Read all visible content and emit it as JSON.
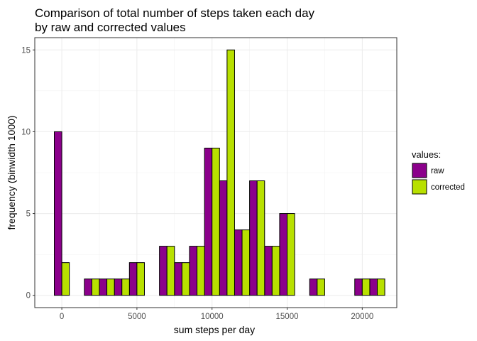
{
  "chart_data": {
    "type": "bar",
    "title_lines": [
      "Comparison of total number of steps taken each day",
      "by raw and corrected values"
    ],
    "xlabel": "sum steps per day",
    "ylabel": "frequency (binwidth 1000)",
    "x_ticks": [
      "0",
      "5000",
      "10000",
      "15000",
      "20000"
    ],
    "y_ticks": [
      "0",
      "5",
      "10",
      "15"
    ],
    "xlim": [
      -1800,
      22300
    ],
    "ylim": [
      -0.75,
      15.75
    ],
    "binwidth": 1000,
    "grid": true,
    "legend": {
      "title": "values:",
      "position": "right"
    },
    "series": [
      {
        "name": "raw",
        "color": "#8B008B",
        "bins": [
          0,
          2000,
          3000,
          4000,
          5000,
          7000,
          8000,
          9000,
          10000,
          11000,
          12000,
          13000,
          14000,
          15000,
          17000,
          20000,
          21000
        ],
        "values": [
          10,
          1,
          1,
          1,
          2,
          3,
          2,
          3,
          9,
          7,
          4,
          7,
          3,
          5,
          1,
          1,
          1
        ]
      },
      {
        "name": "corrected",
        "color": "#B8E000",
        "bins": [
          0,
          2000,
          3000,
          4000,
          5000,
          7000,
          8000,
          9000,
          10000,
          11000,
          12000,
          13000,
          14000,
          15000,
          17000,
          20000,
          21000
        ],
        "values": [
          2,
          1,
          1,
          1,
          2,
          3,
          2,
          3,
          9,
          15,
          4,
          7,
          3,
          5,
          1,
          1,
          1
        ]
      }
    ]
  }
}
